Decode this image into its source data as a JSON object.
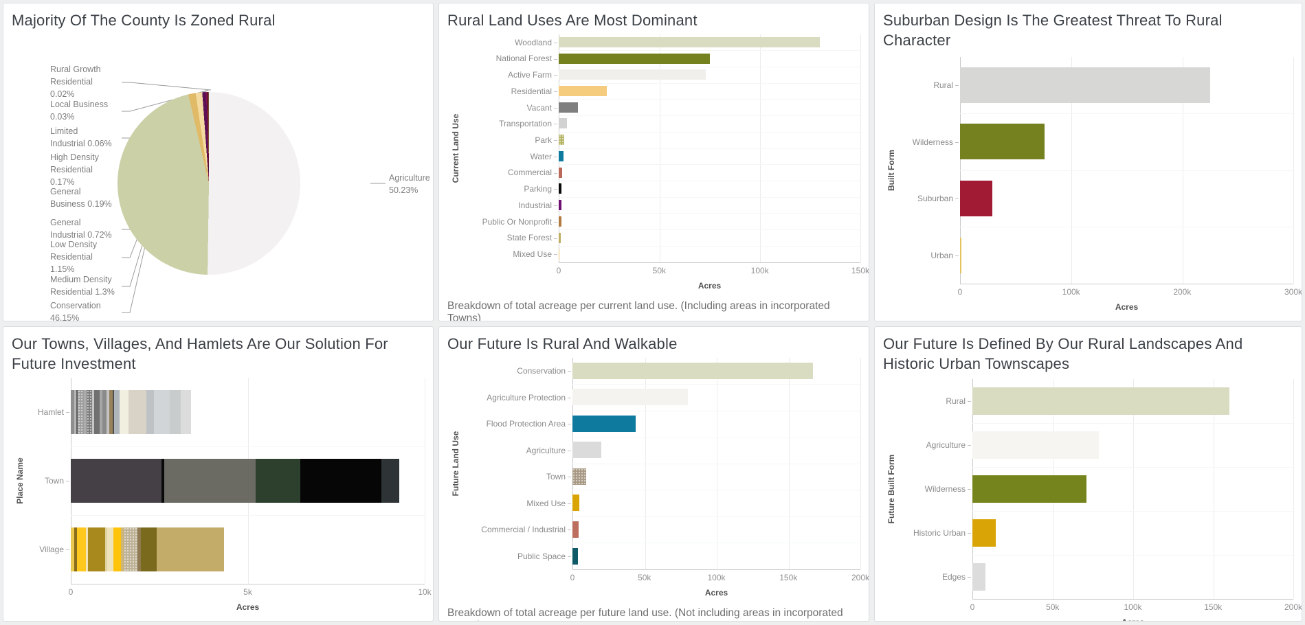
{
  "colors": {
    "background": "#eef0f0",
    "panel": "#ffffff",
    "panel_border": "#d9dde0",
    "title_text": "#3b4046",
    "axis_text": "#8a8a8a",
    "axis_title_text": "#4f4f4f",
    "caption_text": "#6f6f6f",
    "gridline": "#ececec",
    "axis_line": "#c9c9c9"
  },
  "chart_data": [
    {
      "id": "zoning_pie",
      "type": "pie",
      "title": "Majority Of The County Is Zoned Rural",
      "unit": "percent of county acreage by zoning category",
      "slices": [
        {
          "label": "Agriculture",
          "value": 50.23,
          "color": "#f4f1f2",
          "label_lines": [
            "Agriculture",
            "50.23%"
          ]
        },
        {
          "label": "Conservation",
          "value": 46.15,
          "color": "#cbd0a7",
          "label_lines": [
            "Conservation",
            "46.15%"
          ]
        },
        {
          "label": "Medium Density Residential",
          "value": 1.3,
          "color": "#e0ba67",
          "label_lines": [
            "Medium Density",
            "Residential 1.3%"
          ]
        },
        {
          "label": "Low Density Residential",
          "value": 1.15,
          "color": "#f2daa0",
          "label_lines": [
            "Low Density",
            "Residential",
            "1.15%"
          ]
        },
        {
          "label": "General Industrial",
          "value": 0.72,
          "color": "#5c1157",
          "label_lines": [
            "General",
            "Industrial 0.72%"
          ]
        },
        {
          "label": "General Business",
          "value": 0.19,
          "color": "#9c1a38",
          "label_lines": [
            "General",
            "Business 0.19%"
          ]
        },
        {
          "label": "High Density Residential",
          "value": 0.17,
          "color": "#2b0b28",
          "label_lines": [
            "High Density",
            "Residential",
            "0.17%"
          ]
        },
        {
          "label": "Limited Industrial",
          "value": 0.06,
          "color": "#c89a46",
          "label_lines": [
            "Limited",
            "Industrial 0.06%"
          ]
        },
        {
          "label": "Local Business",
          "value": 0.03,
          "color": "#8a8a8a",
          "label_lines": [
            "Local Business",
            "0.03%"
          ]
        },
        {
          "label": "Rural Growth Residential",
          "value": 0.02,
          "color": "#6a6a6a",
          "label_lines": [
            "Rural Growth",
            "Residential",
            "0.02%"
          ]
        }
      ]
    },
    {
      "id": "current_land_use",
      "type": "bar",
      "title": "Rural Land Uses Are Most Dominant",
      "xlabel": "Acres",
      "ylabel": "Current Land Use",
      "xlim": [
        0,
        150000
      ],
      "ticks": [
        {
          "v": 0,
          "label": "0"
        },
        {
          "v": 50000,
          "label": "50k"
        },
        {
          "v": 100000,
          "label": "100k"
        },
        {
          "v": 150000,
          "label": "150k"
        }
      ],
      "caption": "Breakdown of total acreage per current land use. (Including areas in incorporated Towns)",
      "rows": [
        {
          "label": "Woodland",
          "value": 130000,
          "color": "#d9dcc1"
        },
        {
          "label": "National Forest",
          "value": 75000,
          "color": "#75801f"
        },
        {
          "label": "Active Farm",
          "value": 73000,
          "color": "#f0efec"
        },
        {
          "label": "Residential",
          "value": 24000,
          "color": "#f5cc7e"
        },
        {
          "label": "Vacant",
          "value": 9500,
          "color": "#7f7f7f"
        },
        {
          "label": "Transportation",
          "value": 4000,
          "color": "#d2d2d2"
        },
        {
          "label": "Park",
          "value": 2600,
          "color": "#b5b566",
          "dots": true
        },
        {
          "label": "Water",
          "value": 2300,
          "color": "#0e7a9e"
        },
        {
          "label": "Commercial",
          "value": 1800,
          "color": "#b9685a"
        },
        {
          "label": "Parking",
          "value": 1500,
          "color": "#0a0a0a"
        },
        {
          "label": "Industrial",
          "value": 1500,
          "color": "#6d1070"
        },
        {
          "label": "Public Or Nonprofit",
          "value": 1400,
          "color": "#b07b3e"
        },
        {
          "label": "State Forest",
          "value": 1100,
          "color": "#bfad62"
        },
        {
          "label": "Mixed Use",
          "value": 400,
          "color": "#e8c36a"
        }
      ]
    },
    {
      "id": "built_form_threat",
      "type": "bar",
      "title": "Suburban Design Is The Greatest Threat To Rural Character",
      "xlabel": "Acres",
      "ylabel": "Built Form",
      "xlim": [
        0,
        300000
      ],
      "ticks": [
        {
          "v": 0,
          "label": "0"
        },
        {
          "v": 100000,
          "label": "100k"
        },
        {
          "v": 200000,
          "label": "200k"
        },
        {
          "v": 300000,
          "label": "300k"
        }
      ],
      "caption": "",
      "rows": [
        {
          "label": "Rural",
          "value": 225000,
          "color": "#d7d7d5"
        },
        {
          "label": "Wilderness",
          "value": 76000,
          "color": "#75801f"
        },
        {
          "label": "Suburban",
          "value": 29000,
          "color": "#a11b34"
        },
        {
          "label": "Urban",
          "value": 1500,
          "color": "#e2c35c"
        }
      ]
    },
    {
      "id": "place_investment",
      "type": "stacked-bar",
      "title": "Our Towns, Villages, And Hamlets Are Our Solution For Future Investment",
      "xlabel": "Acres",
      "ylabel": "Place Name",
      "xlim": [
        0,
        10000
      ],
      "ticks": [
        {
          "v": 0,
          "label": "0"
        },
        {
          "v": 5000,
          "label": "5k"
        },
        {
          "v": 10000,
          "label": "10k"
        }
      ],
      "caption": "",
      "rows": [
        {
          "label": "Hamlet",
          "total": 3400,
          "segments": [
            {
              "color": "#8f8f8f",
              "value": 100
            },
            {
              "color": "#b5b5b5",
              "value": 50
            },
            {
              "color": "#606060",
              "value": 40
            },
            {
              "color": "#9e9e9e",
              "value": 180,
              "dots": true
            },
            {
              "color": "#acacac",
              "value": 80
            },
            {
              "color": "#7d7d7d",
              "value": 160,
              "dots": true
            },
            {
              "color": "#c6c6c6",
              "value": 60
            },
            {
              "color": "#707070",
              "value": 140
            },
            {
              "color": "#a6a6a6",
              "value": 90
            },
            {
              "color": "#8a8a8a",
              "value": 120
            },
            {
              "color": "#c2c2c2",
              "value": 70
            },
            {
              "color": "#97825c",
              "value": 100
            },
            {
              "color": "#505050",
              "value": 40
            },
            {
              "color": "#aeb6bb",
              "value": 150
            },
            {
              "color": "#f1efdf",
              "value": 250
            },
            {
              "color": "#d8d3c6",
              "value": 500
            },
            {
              "color": "#bfc2c4",
              "value": 220
            },
            {
              "color": "#d2d5d7",
              "value": 450
            },
            {
              "color": "#c9cccd",
              "value": 300
            },
            {
              "color": "#dcdcdc",
              "value": 300
            }
          ]
        },
        {
          "label": "Town",
          "total": 9290,
          "segments": [
            {
              "color": "#454046",
              "value": 2570
            },
            {
              "color": "#0a0a0a",
              "value": 80
            },
            {
              "color": "#6b6b64",
              "value": 2570
            },
            {
              "color": "#2d402e",
              "value": 1270
            },
            {
              "color": "#060606",
              "value": 2290
            },
            {
              "color": "#2e3436",
              "value": 510
            }
          ]
        },
        {
          "label": "Village",
          "total": 4330,
          "segments": [
            {
              "color": "#e9c94f",
              "value": 100
            },
            {
              "color": "#8a6d1c",
              "value": 80
            },
            {
              "color": "#ffc81e",
              "value": 250
            },
            {
              "color": "#f0e3bb",
              "value": 50
            },
            {
              "color": "#a8891d",
              "value": 500
            },
            {
              "color": "#dfd3a3",
              "value": 50
            },
            {
              "color": "#efe3bb",
              "value": 170
            },
            {
              "color": "#ffc40a",
              "value": 220
            },
            {
              "color": "#cdb678",
              "value": 80
            },
            {
              "color": "#bdb196",
              "value": 380,
              "dots": true
            },
            {
              "color": "#8f7a52",
              "value": 100
            },
            {
              "color": "#7a6a1e",
              "value": 450
            },
            {
              "color": "#c3ab6a",
              "value": 1900
            }
          ]
        }
      ]
    },
    {
      "id": "future_land_use",
      "type": "bar",
      "title": "Our Future Is Rural And Walkable",
      "xlabel": "Acres",
      "ylabel": "Future Land Use",
      "xlim": [
        0,
        200000
      ],
      "ticks": [
        {
          "v": 0,
          "label": "0"
        },
        {
          "v": 50000,
          "label": "50k"
        },
        {
          "v": 100000,
          "label": "100k"
        },
        {
          "v": 150000,
          "label": "150k"
        },
        {
          "v": 200000,
          "label": "200k"
        }
      ],
      "caption": "Breakdown of total acreage per future land use. (Not including areas in incorporated Towns)",
      "rows": [
        {
          "label": "Conservation",
          "value": 167000,
          "color": "#d9dcc1"
        },
        {
          "label": "Agriculture Protection",
          "value": 80000,
          "color": "#f4f3f0"
        },
        {
          "label": "Flood Protection Area",
          "value": 44000,
          "color": "#0e7a9e"
        },
        {
          "label": "Agriculture",
          "value": 20000,
          "color": "#dbdbdb"
        },
        {
          "label": "Town",
          "value": 9500,
          "color": "#a89a85",
          "dots": true
        },
        {
          "label": "Mixed Use",
          "value": 5000,
          "color": "#d9a406"
        },
        {
          "label": "Commercial / Industrial",
          "value": 4500,
          "color": "#bc6f5f"
        },
        {
          "label": "Public Space",
          "value": 4000,
          "color": "#0f5a66"
        }
      ]
    },
    {
      "id": "future_built_form",
      "type": "bar",
      "title": "Our Future Is Defined By Our Rural Landscapes And Historic Urban Townscapes",
      "xlabel": "Acres",
      "ylabel": "Future Built Form",
      "xlim": [
        0,
        200000
      ],
      "ticks": [
        {
          "v": 0,
          "label": "0"
        },
        {
          "v": 50000,
          "label": "50k"
        },
        {
          "v": 100000,
          "label": "100k"
        },
        {
          "v": 150000,
          "label": "150k"
        },
        {
          "v": 200000,
          "label": "200k"
        }
      ],
      "caption": "",
      "rows": [
        {
          "label": "Rural",
          "value": 160000,
          "color": "#d9dcc1"
        },
        {
          "label": "Agriculture",
          "value": 79000,
          "color": "#f6f5f2"
        },
        {
          "label": "Wilderness",
          "value": 71000,
          "color": "#75841c"
        },
        {
          "label": "Historic Urban",
          "value": 14500,
          "color": "#d9a406"
        },
        {
          "label": "Edges",
          "value": 8000,
          "color": "#dcdcdc"
        }
      ]
    }
  ]
}
